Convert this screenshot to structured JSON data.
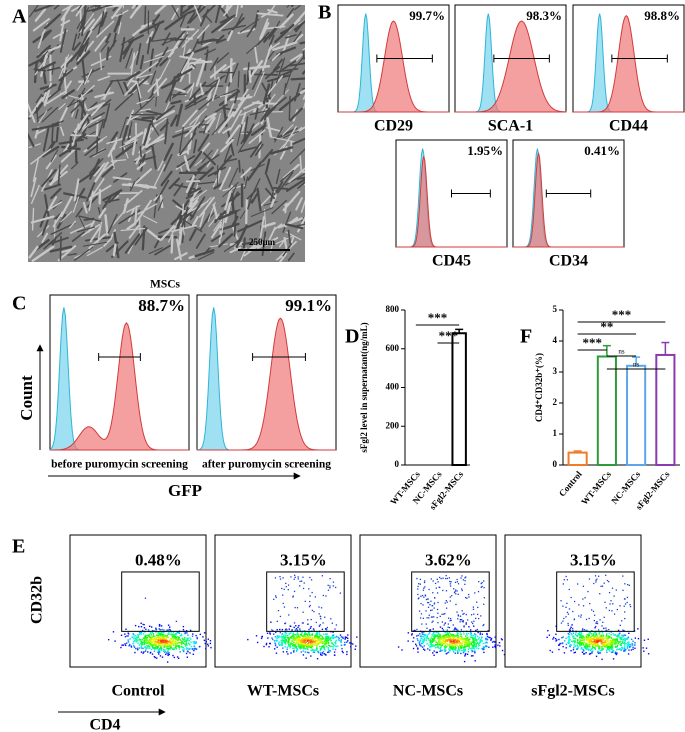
{
  "panel_labels": [
    "A",
    "B",
    "C",
    "D",
    "E",
    "F"
  ],
  "panel_a": {
    "scale_bar": "250μm",
    "caption": "MSCs"
  },
  "panel_b": {
    "histograms": [
      {
        "marker": "CD29",
        "percent": "99.7%"
      },
      {
        "marker": "SCA-1",
        "percent": "98.3%"
      },
      {
        "marker": "CD44",
        "percent": "98.8%"
      },
      {
        "marker": "CD45",
        "percent": "1.95%"
      },
      {
        "marker": "CD34",
        "percent": "0.41%"
      }
    ]
  },
  "panel_c": {
    "y_label": "Count",
    "x_label": "GFP",
    "histograms": [
      {
        "caption": "before puromycin screening",
        "percent": "88.7%"
      },
      {
        "caption": "after puromycin screening",
        "percent": "99.1%"
      }
    ]
  },
  "panel_e": {
    "y_label": "CD32b",
    "x_label": "CD4",
    "plots": [
      {
        "group": "Control",
        "percent": "0.48%"
      },
      {
        "group": "WT-MSCs",
        "percent": "3.15%"
      },
      {
        "group": "NC-MSCs",
        "percent": "3.62%"
      },
      {
        "group": "sFgl2-MSCs",
        "percent": "3.15%"
      }
    ]
  },
  "chart_data": [
    {
      "type": "bar",
      "y_label": "sFgl2 level in supernatant(ng/mL)",
      "categories": [
        "WT-MSCs",
        "NC-MSCs",
        "sFgl2-MSCs"
      ],
      "values": [
        0,
        0,
        680
      ],
      "errors": [
        null,
        null,
        20
      ],
      "color": "#000000",
      "ylim": [
        0,
        800
      ],
      "yticks": [
        0,
        200,
        400,
        600,
        800
      ],
      "annotations": [
        "***",
        "***"
      ]
    },
    {
      "type": "bar",
      "y_label": "CD4⁺CD32b⁺(%)",
      "categories": [
        "Control",
        "WT-MSCs",
        "NC-MSCs",
        "sFgl2-MSCs"
      ],
      "values": [
        0.4,
        3.5,
        3.2,
        3.55
      ],
      "errors": [
        0.05,
        0.35,
        0.28,
        0.4
      ],
      "colors": [
        "#f07c2a",
        "#2e9a3a",
        "#5aa6e6",
        "#8a3ab0"
      ],
      "ylim": [
        0,
        5
      ],
      "yticks": [
        0,
        1,
        2,
        3,
        4,
        5
      ],
      "annotations": [
        "***",
        "**",
        "***",
        "ns",
        "ns"
      ]
    }
  ]
}
